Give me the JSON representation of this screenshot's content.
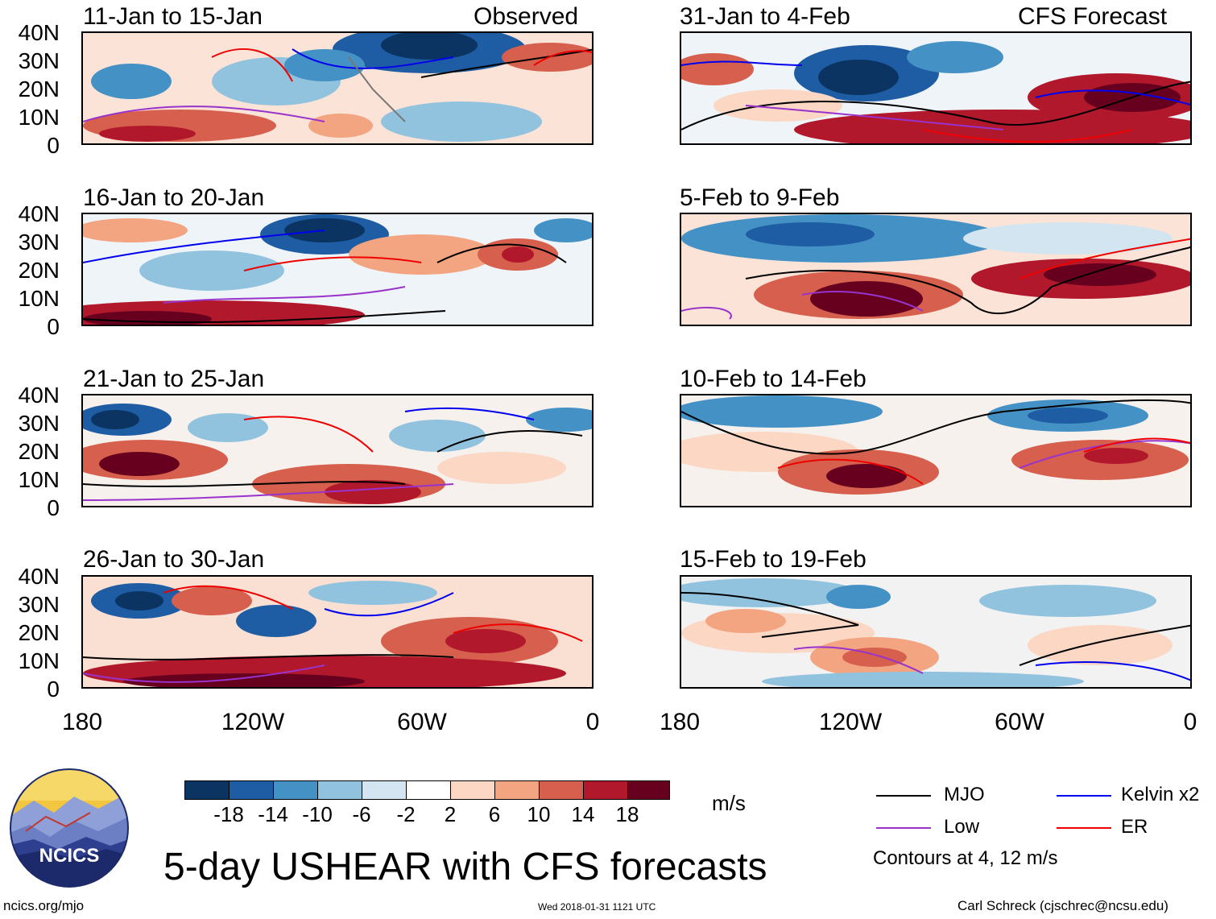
{
  "panels": [
    {
      "period": "11-Jan to 15-Jan",
      "tag": "Observed"
    },
    {
      "period": "16-Jan to 20-Jan",
      "tag": ""
    },
    {
      "period": "21-Jan to 25-Jan",
      "tag": ""
    },
    {
      "period": "26-Jan to 30-Jan",
      "tag": ""
    },
    {
      "period": "31-Jan to 4-Feb",
      "tag": "CFS Forecast"
    },
    {
      "period": "5-Feb to 9-Feb",
      "tag": ""
    },
    {
      "period": "10-Feb to 14-Feb",
      "tag": ""
    },
    {
      "period": "15-Feb to 19-Feb",
      "tag": ""
    }
  ],
  "lat_labels": [
    "40N",
    "30N",
    "20N",
    "10N",
    "0"
  ],
  "lon_labels": [
    "180",
    "120W",
    "60W",
    "0"
  ],
  "colorbar": {
    "colors": [
      "#0b3463",
      "#1e5ca3",
      "#4492c5",
      "#92c3de",
      "#d2e5f0",
      "#ffffff",
      "#fbd7c4",
      "#f3a481",
      "#d6604d",
      "#b2182b",
      "#67001f"
    ],
    "labels": [
      "-18",
      "-14",
      "-10",
      "-6",
      "-2",
      "2",
      "6",
      "10",
      "14",
      "18"
    ],
    "units": "m/s"
  },
  "legend": {
    "items": [
      {
        "label": "MJO",
        "color": "#000000"
      },
      {
        "label": "Kelvin x2",
        "color": "#0000ee"
      },
      {
        "label": "Low",
        "color": "#9933cc"
      },
      {
        "label": "ER",
        "color": "#ee0000"
      }
    ],
    "note": "Contours at 4, 12 m/s"
  },
  "logo": {
    "text": "NCICS"
  },
  "title": "5-day USHEAR with CFS forecasts",
  "footer": {
    "left": "ncics.org/mjo",
    "center": "Wed 2018-01-31 1121 UTC",
    "right": "Carl Schreck (cjschrec@ncsu.edu)"
  }
}
